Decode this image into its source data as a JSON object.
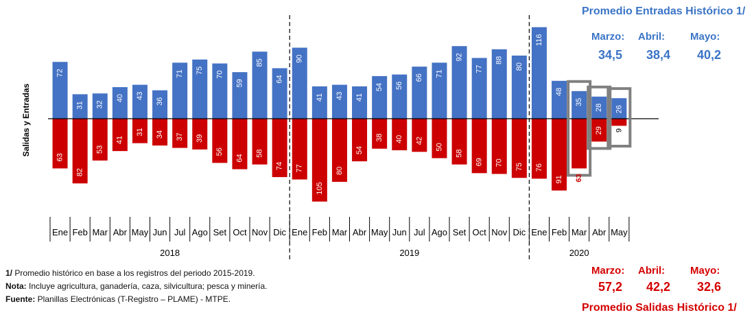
{
  "chart_data": {
    "type": "bar",
    "ylabel": "Salidas  y  Entradas",
    "years": [
      "2018",
      "2019",
      "2020"
    ],
    "categories": [
      "Ene",
      "Feb",
      "Mar",
      "Abr",
      "May",
      "Jun",
      "Jul",
      "Ago",
      "Set",
      "Oct",
      "Nov",
      "Dic",
      "Ene",
      "Feb",
      "Mar",
      "Abr",
      "May",
      "Jun",
      "Jul",
      "Ago",
      "Set",
      "Oct",
      "Nov",
      "Dic",
      "Ene",
      "Feb",
      "Mar",
      "Abr",
      "May"
    ],
    "series": [
      {
        "values": [
          72,
          31,
          32,
          40,
          43,
          36,
          71,
          75,
          70,
          59,
          85,
          64,
          90,
          41,
          43,
          41,
          54,
          56,
          66,
          71,
          92,
          77,
          88,
          80,
          116,
          48,
          35,
          28,
          26
        ],
        "color": "#4472C4"
      },
      {
        "values": [
          63,
          82,
          53,
          41,
          31,
          34,
          37,
          39,
          56,
          64,
          58,
          74,
          77,
          105,
          80,
          54,
          38,
          40,
          42,
          50,
          58,
          69,
          70,
          75,
          76,
          91,
          63,
          29,
          9
        ],
        "color": "#CC0000"
      }
    ],
    "highlighted_months": [
      "Mar",
      "Abr",
      "May"
    ]
  },
  "historic_entries": {
    "title": "Promedio Entradas Histórico 1/",
    "months": [
      "Marzo:",
      "Abril:",
      "Mayo:"
    ],
    "values": [
      "34,5",
      "38,4",
      "40,2"
    ]
  },
  "historic_exits": {
    "title": "Promedio Salidas Histórico 1/",
    "months": [
      "Marzo:",
      "Abril:",
      "Mayo:"
    ],
    "values": [
      "57,2",
      "42,2",
      "32,6"
    ]
  },
  "notes": {
    "n1_label": "1/",
    "n1_text": " Promedio histórico en base a los registros del periodo 2015-2019.",
    "n2_label": "Nota:",
    "n2_text": " Incluye agricultura, ganadería, caza, silvicultura; pesca y minería.",
    "n3_label": "Fuente:",
    "n3_text": " Planillas Electrónicas (T-Registro – PLAME) - MTPE."
  },
  "colors": {
    "blue": "#4472C4",
    "red": "#CC0000",
    "heading_blue": "#3B74C6",
    "heading_red": "#D40000",
    "box": "#808080"
  }
}
